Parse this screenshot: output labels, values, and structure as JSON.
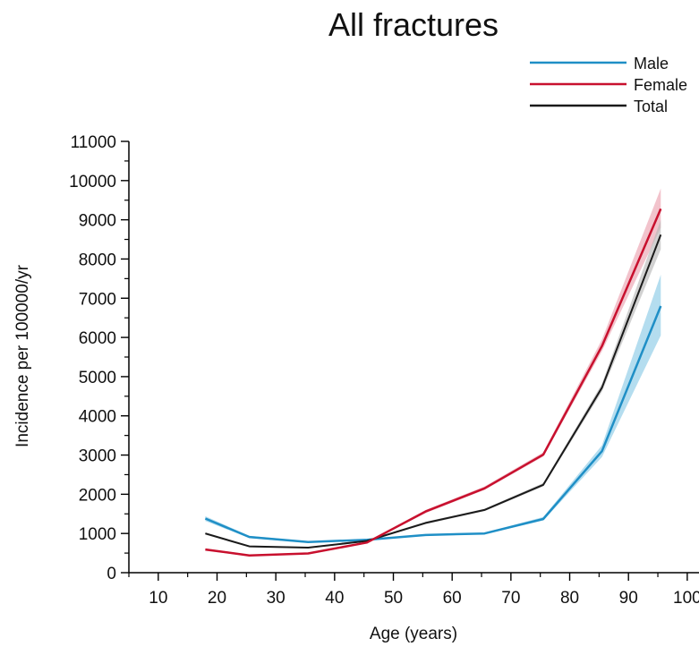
{
  "chart_data": {
    "type": "line",
    "title": "All fractures",
    "xlabel": "Age (years)",
    "ylabel": "Incidence per 100000/yr",
    "xlim": [
      5,
      102
    ],
    "ylim": [
      0,
      11000
    ],
    "x_ticks": [
      10,
      20,
      30,
      40,
      50,
      60,
      70,
      80,
      90,
      100
    ],
    "y_ticks": [
      0,
      1000,
      2000,
      3000,
      4000,
      5000,
      6000,
      7000,
      8000,
      9000,
      10000,
      11000
    ],
    "y_minor_step": 500,
    "legend_position": "top-right",
    "x": [
      18,
      25.5,
      35.5,
      45.5,
      55.5,
      65.5,
      75.5,
      85.5,
      95.5
    ],
    "series": [
      {
        "name": "Male",
        "color": "#1f8fc6",
        "band_color": "#8ccbe6",
        "values": [
          1380,
          910,
          780,
          840,
          960,
          1000,
          1370,
          3100,
          6800
        ],
        "lower": [
          1320,
          880,
          760,
          820,
          940,
          980,
          1330,
          2950,
          6050
        ],
        "upper": [
          1440,
          940,
          800,
          860,
          980,
          1020,
          1420,
          3250,
          7600
        ]
      },
      {
        "name": "Female",
        "color": "#c8102e",
        "band_color": "#eba3b0",
        "values": [
          590,
          440,
          490,
          770,
          1560,
          2150,
          3010,
          5780,
          9280
        ],
        "lower": [
          560,
          420,
          470,
          750,
          1520,
          2110,
          2960,
          5650,
          8800
        ],
        "upper": [
          620,
          460,
          510,
          790,
          1600,
          2200,
          3070,
          5950,
          9800
        ]
      },
      {
        "name": "Total",
        "color": "#1a1a1a",
        "band_color": "#b9b9b9",
        "values": [
          1000,
          670,
          640,
          810,
          1270,
          1600,
          2240,
          4720,
          8620
        ],
        "lower": [
          970,
          650,
          620,
          790,
          1240,
          1570,
          2200,
          4620,
          8250
        ],
        "upper": [
          1030,
          690,
          660,
          830,
          1300,
          1630,
          2290,
          4820,
          9000
        ]
      }
    ]
  }
}
